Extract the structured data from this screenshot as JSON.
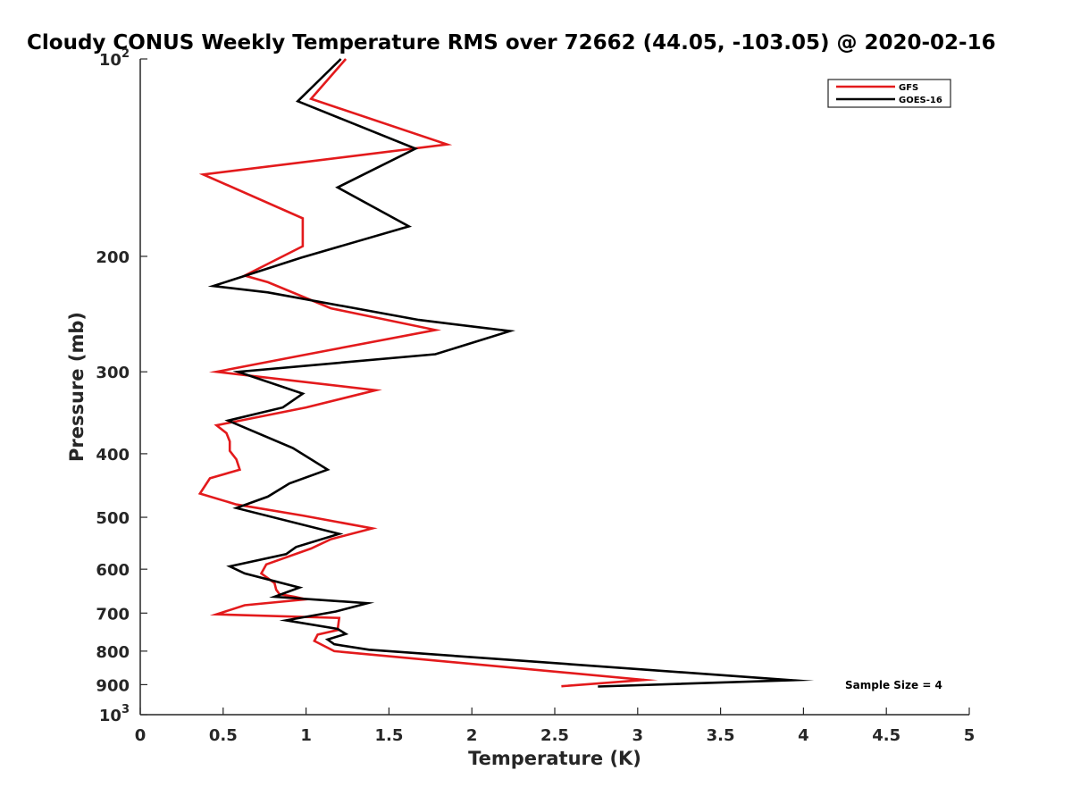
{
  "chart_data": {
    "type": "line",
    "title": "Cloudy CONUS Weekly Temperature RMS over 72662 (44.05, -103.05) @ 2020-02-16",
    "xlabel": "Temperature (K)",
    "ylabel": "Pressure (mb)",
    "xlim": [
      0,
      5
    ],
    "ylim": [
      100,
      1000
    ],
    "y_scale": "log",
    "y_reversed": true,
    "x_ticks": [
      0,
      0.5,
      1,
      1.5,
      2,
      2.5,
      3,
      3.5,
      4,
      4.5,
      5
    ],
    "x_tick_labels": [
      "0",
      "0.5",
      "1",
      "1.5",
      "2",
      "2.5",
      "3",
      "3.5",
      "4",
      "4.5",
      "5"
    ],
    "y_ticks": [
      {
        "value": 100,
        "base": "10",
        "exp": "2"
      },
      {
        "value": 200,
        "label": "200"
      },
      {
        "value": 300,
        "label": "300"
      },
      {
        "value": 400,
        "label": "400"
      },
      {
        "value": 500,
        "label": "500"
      },
      {
        "value": 600,
        "label": "600"
      },
      {
        "value": 700,
        "label": "700"
      },
      {
        "value": 800,
        "label": "800"
      },
      {
        "value": 900,
        "label": "900"
      },
      {
        "value": 1000,
        "base": "10",
        "exp": "3"
      }
    ],
    "grid": false,
    "legend_position": "top-right",
    "series": [
      {
        "name": "GFS",
        "color": "#e31a1c",
        "points": [
          [
            1.24,
            100
          ],
          [
            1.03,
            115
          ],
          [
            1.85,
            135
          ],
          [
            0.38,
            150
          ],
          [
            0.98,
            175
          ],
          [
            0.98,
            193
          ],
          [
            0.63,
            214
          ],
          [
            0.77,
            219
          ],
          [
            1.15,
            240
          ],
          [
            1.78,
            259
          ],
          [
            0.98,
            283
          ],
          [
            0.46,
            300
          ],
          [
            1.42,
            320
          ],
          [
            1.0,
            340
          ],
          [
            0.46,
            362
          ],
          [
            0.52,
            372
          ],
          [
            0.54,
            383
          ],
          [
            0.54,
            396
          ],
          [
            0.58,
            408
          ],
          [
            0.6,
            423
          ],
          [
            0.42,
            436
          ],
          [
            0.36,
            460
          ],
          [
            0.58,
            478
          ],
          [
            0.98,
            497
          ],
          [
            1.4,
            520
          ],
          [
            1.15,
            540
          ],
          [
            1.03,
            558
          ],
          [
            0.76,
            590
          ],
          [
            0.73,
            609
          ],
          [
            0.81,
            630
          ],
          [
            0.82,
            645
          ],
          [
            0.84,
            655
          ],
          [
            0.93,
            661
          ],
          [
            1.0,
            667
          ],
          [
            0.63,
            681
          ],
          [
            0.46,
            703
          ],
          [
            1.2,
            712
          ],
          [
            1.19,
            743
          ],
          [
            1.07,
            755
          ],
          [
            1.05,
            772
          ],
          [
            1.17,
            800
          ],
          [
            3.04,
            885
          ],
          [
            2.54,
            905
          ]
        ]
      },
      {
        "name": "GOES-16",
        "color": "#000000",
        "points": [
          [
            1.21,
            100
          ],
          [
            0.95,
            116
          ],
          [
            1.66,
            137
          ],
          [
            1.19,
            157
          ],
          [
            1.62,
            180
          ],
          [
            0.97,
            201
          ],
          [
            0.44,
            222
          ],
          [
            0.77,
            227
          ],
          [
            1.68,
            250
          ],
          [
            2.23,
            260
          ],
          [
            1.78,
            282
          ],
          [
            0.59,
            300
          ],
          [
            0.98,
            324
          ],
          [
            0.86,
            340
          ],
          [
            0.53,
            356
          ],
          [
            0.92,
            392
          ],
          [
            1.13,
            423
          ],
          [
            0.9,
            444
          ],
          [
            0.77,
            465
          ],
          [
            0.58,
            484
          ],
          [
            1.2,
            530
          ],
          [
            0.94,
            555
          ],
          [
            0.88,
            569
          ],
          [
            0.54,
            594
          ],
          [
            0.63,
            609
          ],
          [
            0.96,
            640
          ],
          [
            0.81,
            661
          ],
          [
            1.37,
            676
          ],
          [
            1.18,
            696
          ],
          [
            0.88,
            718
          ],
          [
            1.19,
            740
          ],
          [
            1.24,
            753
          ],
          [
            1.13,
            768
          ],
          [
            1.17,
            781
          ],
          [
            1.38,
            796
          ],
          [
            3.93,
            886
          ],
          [
            2.76,
            906
          ]
        ]
      }
    ],
    "annotation": "Sample Size = 4"
  }
}
